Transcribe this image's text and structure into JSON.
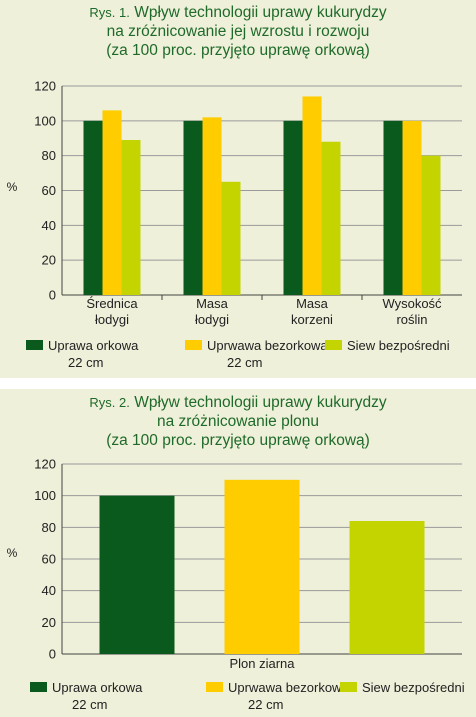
{
  "colors": {
    "orkowa": "#0a5a1e",
    "bezorkowa": "#ffcc00",
    "siew": "#c4d400",
    "grid": "#9a9a9a",
    "title": "#1f6a2a",
    "panel": "#eef0d9"
  },
  "chart_data": [
    {
      "type": "bar",
      "title_prefix": "Rys. 1.",
      "title": [
        "Wpływ technologii uprawy kukurydzy",
        "na zróżnicowanie jej wzrostu i rozwoju",
        "(za 100 proc. przyjęto uprawę orkową)"
      ],
      "ylabel": "%",
      "xlabel": "",
      "ylim": [
        0,
        120
      ],
      "yticks": [
        0,
        20,
        40,
        60,
        80,
        100,
        120
      ],
      "grid": true,
      "categories": [
        [
          "Średnica",
          "łodygi"
        ],
        [
          "Masa",
          "łodygi"
        ],
        [
          "Masa",
          "korzeni"
        ],
        [
          "Wysokość",
          "roślin"
        ]
      ],
      "series": [
        {
          "name": [
            "Uprawa orkowa",
            "22 cm"
          ],
          "values": [
            100,
            100,
            100,
            100
          ]
        },
        {
          "name": [
            "Uprwawa bezorkowa",
            "22 cm"
          ],
          "values": [
            106,
            102,
            114,
            100
          ]
        },
        {
          "name": [
            "Siew bezpośredni"
          ],
          "values": [
            89,
            65,
            88,
            80
          ]
        }
      ],
      "legend": "bottom"
    },
    {
      "type": "bar",
      "title_prefix": "Rys. 2.",
      "title": [
        "Wpływ technologii uprawy kukurydzy",
        "na zróżnicowanie plonu",
        "(za 100 proc. przyjęto uprawę orkową)"
      ],
      "ylabel": "%",
      "xlabel": "",
      "ylim": [
        0,
        120
      ],
      "yticks": [
        0,
        20,
        40,
        60,
        80,
        100,
        120
      ],
      "grid": true,
      "categories": [
        [
          "Plon ziarna"
        ]
      ],
      "series": [
        {
          "name": [
            "Uprawa orkowa",
            "22 cm"
          ],
          "values": [
            100
          ]
        },
        {
          "name": [
            "Uprwawa bezorkowa",
            "22 cm"
          ],
          "values": [
            110
          ]
        },
        {
          "name": [
            "Siew bezpośredni"
          ],
          "values": [
            84
          ]
        }
      ],
      "legend": "bottom"
    }
  ]
}
